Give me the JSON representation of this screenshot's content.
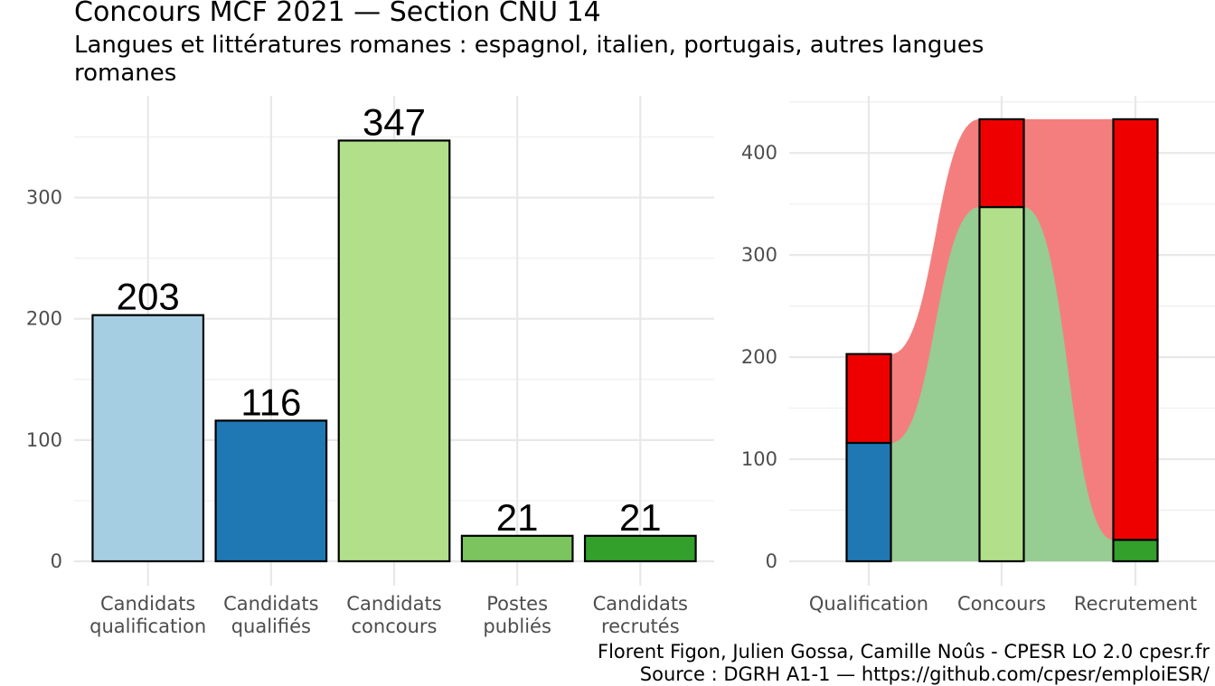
{
  "title": "Concours MCF  2021  —  Section CNU 14",
  "subtitle": "Langues et littératures romanes : espagnol, italien, portugais, autres langues romanes",
  "caption": {
    "line1": "Florent Figon, Julien Gossa, Camille Noûs - CPESR LO 2.0 cpesr.fr",
    "line2": "Source : DGRH A1-1 — https://github.com/cpesr/emploiESR/"
  },
  "colors": {
    "candidats_qualification": "#A6CEE3",
    "candidats_qualifies": "#1F78B4",
    "candidats_concours": "#B2DF8A",
    "postes_publies": "#7BC45E",
    "candidats_recrutes": "#33A02C",
    "non_retenus": "#EE0000",
    "flux_rouge": "#F47E7E",
    "flux_vert": "#97CC92"
  },
  "chart_data": [
    {
      "type": "bar",
      "categories": [
        [
          "Candidats",
          "qualification"
        ],
        [
          "Candidats",
          "qualifiés"
        ],
        [
          "Candidats",
          "concours"
        ],
        [
          "Postes",
          "publiés"
        ],
        [
          "Candidats",
          "recrutés"
        ]
      ],
      "values": [
        203,
        116,
        347,
        21,
        21
      ],
      "data_labels": [
        "203",
        "116",
        "347",
        "21",
        "21"
      ],
      "ylim": [
        0,
        365
      ],
      "yticks": [
        0,
        100,
        200,
        300
      ],
      "grid": true
    },
    {
      "type": "bar",
      "stacked": true,
      "categories": [
        "Qualification",
        "Concours",
        "Recrutement"
      ],
      "stacks": [
        [
          {
            "value": 116,
            "color": "candidats_qualifies"
          },
          {
            "value": 87,
            "color": "non_retenus"
          }
        ],
        [
          {
            "value": 347,
            "color": "candidats_concours"
          },
          {
            "value": 86,
            "color": "non_retenus"
          }
        ],
        [
          {
            "value": 21,
            "color": "candidats_recrutes"
          },
          {
            "value": 412,
            "color": "non_retenus"
          }
        ]
      ],
      "flows": true,
      "ylim": [
        -30,
        455
      ],
      "yticks": [
        0,
        100,
        200,
        300,
        400
      ],
      "grid": true
    }
  ]
}
